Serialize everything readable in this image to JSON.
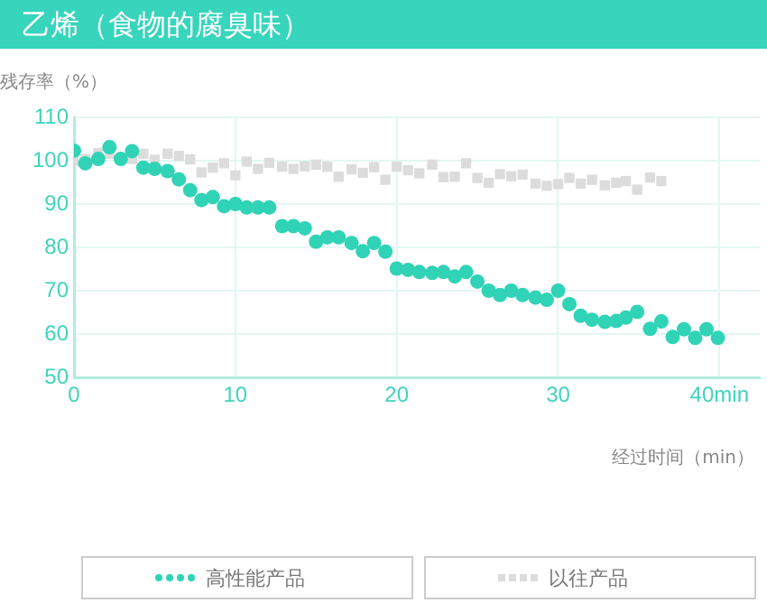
{
  "chart_data": {
    "type": "scatter",
    "title": "乙烯（食物的腐臭味）",
    "xlabel": "经过时间（min）",
    "ylabel": "残存率（%）",
    "xlim": [
      0,
      42.5
    ],
    "xticks": [
      0,
      10,
      20,
      30,
      {
        "value": 40,
        "label": "40min"
      }
    ],
    "ylim": [
      50,
      110
    ],
    "yticks": [
      50,
      60,
      70,
      80,
      90,
      100,
      110
    ],
    "grid": true,
    "legend": "bottom",
    "series": [
      {
        "name": "高性能产品",
        "color": "#30d3b6",
        "marker": "circle",
        "x": [
          0,
          0.7,
          1.5,
          2.2,
          2.9,
          3.6,
          4.3,
          5.0,
          5.8,
          6.5,
          7.2,
          7.9,
          8.6,
          9.3,
          10.0,
          10.7,
          11.4,
          12.1,
          12.9,
          13.6,
          14.3,
          15.0,
          15.7,
          16.4,
          17.2,
          17.9,
          18.6,
          19.3,
          20.0,
          20.7,
          21.4,
          22.2,
          22.9,
          23.6,
          24.3,
          25.0,
          25.7,
          26.4,
          27.1,
          27.8,
          28.6,
          29.3,
          30.0,
          30.7,
          31.4,
          32.1,
          32.9,
          33.6,
          34.2,
          34.9,
          35.7,
          36.4,
          37.1,
          37.8,
          38.5,
          39.2,
          39.9
        ],
        "values": [
          102.3,
          99.4,
          100.4,
          103.1,
          100.4,
          102.2,
          98.4,
          98.1,
          97.6,
          95.7,
          93.2,
          90.9,
          91.6,
          89.5,
          90.0,
          89.2,
          89.2,
          89.2,
          84.9,
          84.9,
          84.4,
          81.3,
          82.3,
          82.3,
          81.0,
          79.1,
          81.0,
          79.0,
          75.1,
          74.8,
          74.3,
          74.1,
          74.3,
          73.3,
          74.3,
          72.1,
          70.0,
          69.0,
          70.0,
          69.0,
          68.4,
          67.9,
          70.0,
          66.9,
          64.2,
          63.3,
          62.8,
          63.0,
          63.8,
          65.1,
          61.2,
          62.9,
          59.3,
          61.1,
          59.1,
          61.1,
          59.1
        ]
      },
      {
        "name": "以往产品",
        "color": "#dcdcdc",
        "marker": "square",
        "x": [
          0,
          0.7,
          1.5,
          2.2,
          3.6,
          4.3,
          5.0,
          5.8,
          6.5,
          7.2,
          7.9,
          8.6,
          9.3,
          10.0,
          10.7,
          11.4,
          12.1,
          12.9,
          13.6,
          14.3,
          15.0,
          15.7,
          16.4,
          17.2,
          17.9,
          18.6,
          19.3,
          20.0,
          20.7,
          21.4,
          22.2,
          22.9,
          23.6,
          24.3,
          25.0,
          25.7,
          26.4,
          27.1,
          27.8,
          28.6,
          29.3,
          30.0,
          30.7,
          31.4,
          32.1,
          32.9,
          33.6,
          34.2,
          34.9,
          35.7,
          36.4
        ],
        "values": [
          99.9,
          100.4,
          101.8,
          101.6,
          100.4,
          101.6,
          100.2,
          101.6,
          101.1,
          100.3,
          97.3,
          98.4,
          99.4,
          96.6,
          99.8,
          98.1,
          99.5,
          98.6,
          98.1,
          98.7,
          99.1,
          98.6,
          96.3,
          98.0,
          97.2,
          98.5,
          95.6,
          98.6,
          97.8,
          97.1,
          99.1,
          96.2,
          96.3,
          99.4,
          96.0,
          94.9,
          96.9,
          96.4,
          96.8,
          94.7,
          94.2,
          94.6,
          96.0,
          94.7,
          95.6,
          94.3,
          94.9,
          95.3,
          93.3,
          96.1,
          95.3
        ]
      }
    ]
  }
}
